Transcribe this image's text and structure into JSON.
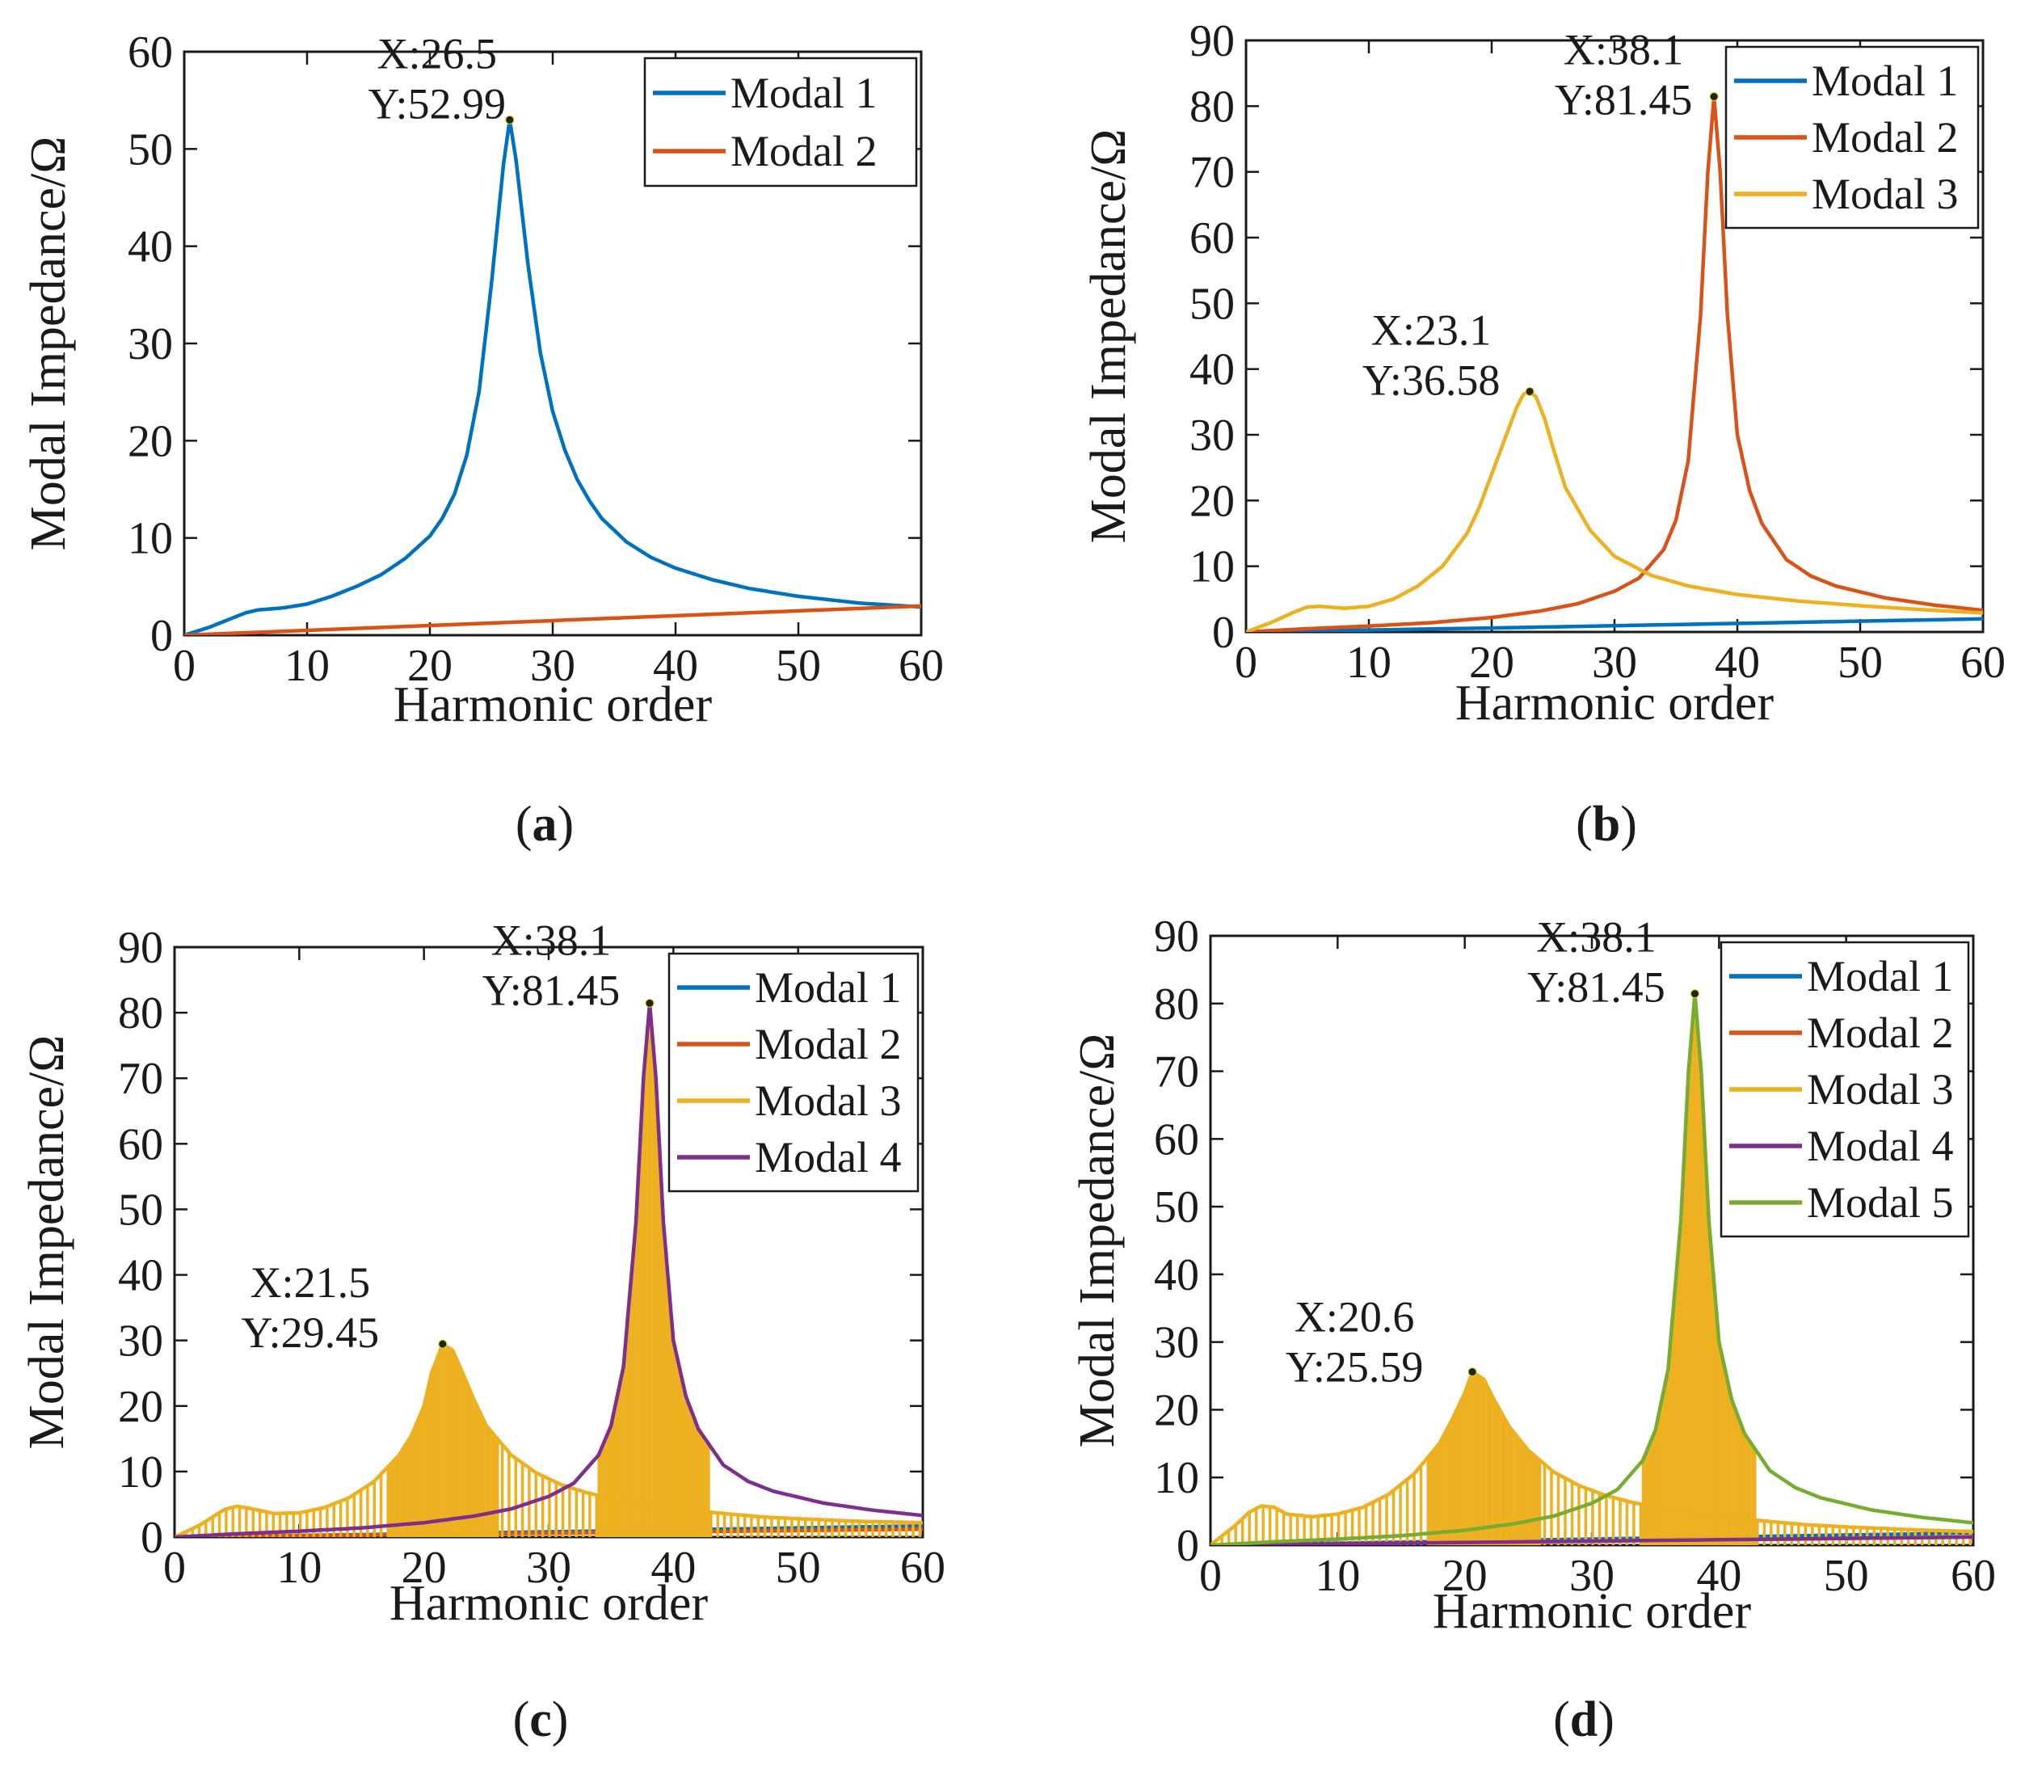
{
  "colors": {
    "modal_1": "#0072BD",
    "modal_2": "#D95319",
    "modal_3": "#EDB120",
    "modal_4": "#7E2F8E",
    "modal_5": "#77AC30",
    "axis": "#1a1a1a"
  },
  "chart_data": [
    {
      "type": "line",
      "panel": "a",
      "caption": {
        "open": "(",
        "letter": "a",
        "close": ")"
      },
      "xlabel": "Harmonic order",
      "ylabel": "Modal Impedance/Ω",
      "xlim": [
        0,
        60
      ],
      "ylim": [
        0,
        60
      ],
      "xticks": [
        0,
        10,
        20,
        30,
        40,
        50,
        60
      ],
      "yticks": [
        0,
        10,
        20,
        30,
        40,
        50,
        60
      ],
      "legend_position": "top-right",
      "series": [
        {
          "name": "Modal 1",
          "color_key": "modal_1",
          "x": [
            0,
            2,
            4,
            5,
            6,
            7,
            8,
            10,
            12,
            14,
            16,
            18,
            20,
            21,
            22,
            23,
            24,
            25,
            26,
            26.5,
            27,
            28,
            29,
            30,
            31,
            32,
            33,
            34,
            36,
            38,
            40,
            43,
            46,
            50,
            55,
            60
          ],
          "y": [
            0,
            0.8,
            1.8,
            2.3,
            2.6,
            2.7,
            2.8,
            3.2,
            4.0,
            5.0,
            6.2,
            7.9,
            10.2,
            12.0,
            14.5,
            18.5,
            25.0,
            36.0,
            48.5,
            52.99,
            49.0,
            38.0,
            29.0,
            23.0,
            19.0,
            16.0,
            13.8,
            12.0,
            9.6,
            8.0,
            6.9,
            5.7,
            4.8,
            4.0,
            3.3,
            2.9
          ]
        },
        {
          "name": "Modal 2",
          "color_key": "modal_2",
          "x": [
            0,
            10,
            20,
            30,
            40,
            50,
            60
          ],
          "y": [
            0,
            0.5,
            1.0,
            1.5,
            2.0,
            2.5,
            3.0
          ]
        }
      ],
      "annotations": [
        {
          "x": 26.5,
          "y": 52.99,
          "label_x": "X:26.5",
          "label_y": "Y:52.99"
        }
      ]
    },
    {
      "type": "line",
      "panel": "b",
      "caption": {
        "open": "(",
        "letter": "b",
        "close": ")"
      },
      "xlabel": "Harmonic order",
      "ylabel": "Modal Impedance/Ω",
      "xlim": [
        0,
        60
      ],
      "ylim": [
        0,
        90
      ],
      "xticks": [
        0,
        10,
        20,
        30,
        40,
        50,
        60
      ],
      "yticks": [
        0,
        10,
        20,
        30,
        40,
        50,
        60,
        70,
        80,
        90
      ],
      "legend_position": "top-right",
      "series": [
        {
          "name": "Modal 1",
          "color_key": "modal_1",
          "x": [
            0,
            20,
            40,
            60
          ],
          "y": [
            0,
            0.6,
            1.3,
            2.0
          ]
        },
        {
          "name": "Modal 2",
          "color_key": "modal_2",
          "x": [
            0,
            5,
            10,
            15,
            20,
            24,
            27,
            30,
            32,
            34,
            35,
            36,
            37,
            37.6,
            38.1,
            38.6,
            39.2,
            40,
            41,
            42,
            44,
            46,
            48,
            52,
            56,
            60
          ],
          "y": [
            0,
            0.5,
            0.9,
            1.4,
            2.2,
            3.2,
            4.3,
            6.2,
            8.2,
            12.5,
            17.0,
            26.0,
            48.0,
            70.0,
            81.45,
            70.0,
            48.0,
            30.0,
            21.5,
            16.5,
            11.0,
            8.5,
            7.0,
            5.2,
            4.1,
            3.3
          ]
        },
        {
          "name": "Modal 3",
          "color_key": "modal_3",
          "x": [
            0,
            2,
            4,
            5,
            6,
            8,
            10,
            12,
            14,
            16,
            18,
            19,
            20,
            21,
            22,
            22.6,
            23.1,
            23.6,
            24.3,
            25,
            26,
            28,
            30,
            33,
            36,
            40,
            45,
            50,
            55,
            60
          ],
          "y": [
            0,
            1.4,
            3.1,
            3.8,
            3.9,
            3.6,
            3.9,
            5.0,
            7.0,
            10.0,
            15.0,
            19.0,
            24.0,
            29.0,
            34.0,
            36.2,
            36.58,
            35.8,
            32.5,
            28.0,
            22.0,
            15.5,
            11.5,
            8.6,
            7.0,
            5.7,
            4.7,
            4.0,
            3.4,
            2.9
          ]
        }
      ],
      "annotations": [
        {
          "x": 38.1,
          "y": 81.45,
          "label_x": "X:38.1",
          "label_y": "Y:81.45"
        },
        {
          "x": 23.1,
          "y": 36.58,
          "label_x": "X:23.1",
          "label_y": "Y:36.58"
        }
      ]
    },
    {
      "type": "line",
      "panel": "c",
      "caption": {
        "open": "(",
        "letter": "c",
        "close": ")"
      },
      "xlabel": "Harmonic order",
      "ylabel": "Modal Impedance/Ω",
      "xlim": [
        0,
        60
      ],
      "ylim": [
        0,
        90
      ],
      "xticks": [
        0,
        10,
        20,
        30,
        40,
        50,
        60
      ],
      "yticks": [
        0,
        10,
        20,
        30,
        40,
        50,
        60,
        70,
        80,
        90
      ],
      "legend_position": "top-right",
      "series": [
        {
          "name": "Modal 1",
          "color_key": "modal_1",
          "x": [
            0,
            20,
            40,
            60
          ],
          "y": [
            0,
            0.5,
            1.1,
            1.7
          ]
        },
        {
          "name": "Modal 2",
          "color_key": "modal_2",
          "x": [
            0,
            20,
            40,
            60
          ],
          "y": [
            0,
            0.4,
            0.8,
            1.2
          ]
        },
        {
          "name": "Modal 3",
          "color_key": "modal_3",
          "fill": "stripes",
          "x": [
            0,
            2,
            4,
            5,
            6,
            8,
            10,
            12,
            14,
            16,
            18,
            19,
            20,
            20.6,
            21.5,
            22.3,
            23,
            24,
            25,
            27,
            29,
            31,
            33,
            35,
            37,
            38.1,
            39,
            41,
            44,
            47,
            50,
            55,
            60
          ],
          "y": [
            0,
            1.8,
            4.2,
            4.7,
            4.4,
            3.6,
            3.7,
            4.5,
            6.0,
            8.5,
            12.5,
            15.5,
            20.0,
            25.0,
            29.45,
            28.5,
            25.5,
            21.0,
            17.0,
            12.5,
            9.8,
            8.0,
            6.8,
            5.9,
            5.2,
            4.9,
            4.6,
            4.2,
            3.6,
            3.1,
            2.8,
            2.4,
            2.2
          ]
        },
        {
          "name": "Modal 4",
          "color_key": "modal_4",
          "x": [
            0,
            5,
            10,
            15,
            20,
            24,
            27,
            30,
            32,
            34,
            35,
            36,
            37,
            37.6,
            38.1,
            38.6,
            39.2,
            40,
            41,
            42,
            44,
            46,
            48,
            52,
            56,
            60
          ],
          "y": [
            0,
            0.5,
            0.9,
            1.4,
            2.2,
            3.2,
            4.3,
            6.2,
            8.2,
            12.5,
            17.0,
            26.0,
            48.0,
            70.0,
            81.45,
            70.0,
            48.0,
            30.0,
            21.5,
            16.5,
            11.0,
            8.5,
            7.0,
            5.2,
            4.1,
            3.3
          ]
        }
      ],
      "annotations": [
        {
          "x": 38.1,
          "y": 81.45,
          "label_x": "X:38.1",
          "label_y": "Y:81.45"
        },
        {
          "x": 21.5,
          "y": 29.45,
          "label_x": "X:21.5",
          "label_y": "Y:29.45"
        }
      ]
    },
    {
      "type": "line",
      "panel": "d",
      "caption": {
        "open": "(",
        "letter": "d",
        "close": ")"
      },
      "xlabel": "Harmonic order",
      "ylabel": "Modal Impedance/Ω",
      "xlim": [
        0,
        60
      ],
      "ylim": [
        0,
        90
      ],
      "xticks": [
        0,
        10,
        20,
        30,
        40,
        50,
        60
      ],
      "yticks": [
        0,
        10,
        20,
        30,
        40,
        50,
        60,
        70,
        80,
        90
      ],
      "legend_position": "top-right",
      "series": [
        {
          "name": "Modal 1",
          "color_key": "modal_1",
          "x": [
            0,
            20,
            40,
            60
          ],
          "y": [
            0,
            0.6,
            1.2,
            1.8
          ]
        },
        {
          "name": "Modal 2",
          "color_key": "modal_2",
          "x": [
            0,
            20,
            40,
            60
          ],
          "y": [
            0,
            0.4,
            0.8,
            1.2
          ]
        },
        {
          "name": "Modal 3",
          "color_key": "modal_3",
          "fill": "stripes",
          "x": [
            0,
            2,
            3,
            4,
            5,
            6,
            8,
            10,
            12,
            14,
            16,
            18,
            19,
            20,
            20.6,
            21.5,
            22.3,
            23.5,
            25,
            27,
            29,
            31,
            33,
            35,
            37,
            38.1,
            39,
            41,
            44,
            47,
            50,
            55,
            60
          ],
          "y": [
            0,
            3.0,
            4.8,
            5.8,
            5.6,
            4.6,
            4.2,
            4.6,
            5.6,
            7.5,
            10.5,
            15.0,
            18.5,
            22.5,
            25.59,
            24.5,
            21.5,
            17.5,
            14.0,
            10.8,
            8.8,
            7.4,
            6.4,
            5.6,
            5.0,
            4.7,
            4.4,
            4.0,
            3.5,
            3.0,
            2.7,
            2.3,
            2.0
          ]
        },
        {
          "name": "Modal 4",
          "color_key": "modal_4",
          "x": [
            0,
            20,
            40,
            60
          ],
          "y": [
            0,
            0.4,
            0.8,
            1.2
          ]
        },
        {
          "name": "Modal 5",
          "color_key": "modal_5",
          "x": [
            0,
            5,
            10,
            15,
            20,
            24,
            27,
            30,
            32,
            34,
            35,
            36,
            37,
            37.6,
            38.1,
            38.6,
            39.2,
            40,
            41,
            42,
            44,
            46,
            48,
            52,
            56,
            60
          ],
          "y": [
            0,
            0.5,
            0.9,
            1.4,
            2.2,
            3.2,
            4.3,
            6.2,
            8.2,
            12.5,
            17.0,
            26.0,
            48.0,
            70.0,
            81.45,
            70.0,
            48.0,
            30.0,
            21.5,
            16.5,
            11.0,
            8.5,
            7.0,
            5.2,
            4.1,
            3.3
          ]
        }
      ],
      "annotations": [
        {
          "x": 38.1,
          "y": 81.45,
          "label_x": "X:38.1",
          "label_y": "Y:81.45"
        },
        {
          "x": 20.6,
          "y": 25.59,
          "label_x": "X:20.6",
          "label_y": "Y:25.59"
        }
      ]
    }
  ]
}
